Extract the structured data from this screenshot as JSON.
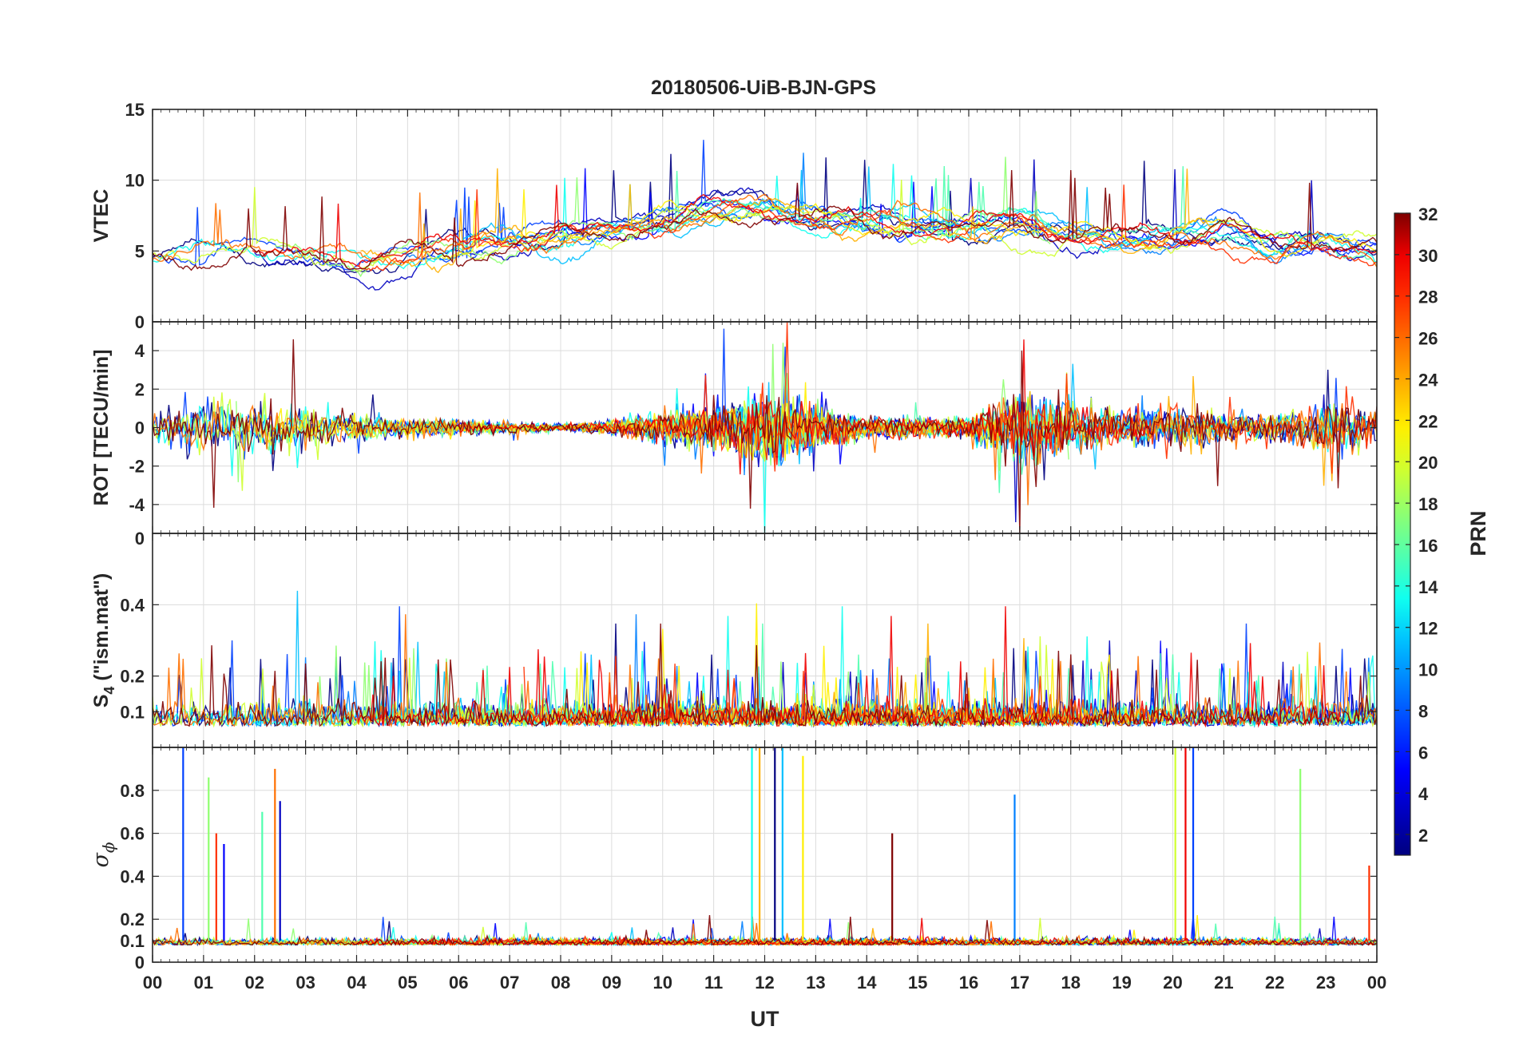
{
  "chart_data": {
    "type": "line",
    "title": "20180506-UiB-BJN-GPS",
    "xlabel": "UT",
    "x_range_hours": [
      0,
      24
    ],
    "x_tick_labels": [
      "00",
      "01",
      "02",
      "03",
      "04",
      "05",
      "06",
      "07",
      "08",
      "09",
      "10",
      "11",
      "12",
      "13",
      "14",
      "15",
      "16",
      "17",
      "18",
      "19",
      "20",
      "21",
      "22",
      "23",
      "00"
    ],
    "series_description": "One time series per GPS satellite PRN 1-32, colored by PRN",
    "panels": [
      {
        "name": "vtec",
        "ylabel": "VTEC",
        "ylim": [
          0,
          15
        ],
        "y_ticks": [
          0,
          5,
          10,
          15
        ],
        "y_tick_labels": [
          "0",
          "5",
          "10",
          "15"
        ],
        "baseline_hourly": [
          4.5,
          5.0,
          5.3,
          4.6,
          4.2,
          4.6,
          5.2,
          5.5,
          6.0,
          6.5,
          7.2,
          7.8,
          8.1,
          7.6,
          7.1,
          6.9,
          6.6,
          6.8,
          6.4,
          5.9,
          6.0,
          6.5,
          5.2,
          5.6,
          5.0
        ]
      },
      {
        "name": "rot",
        "ylabel": "ROT [TECU/min]",
        "ylim": [
          -5.5,
          5.5
        ],
        "y_ticks": [
          -4,
          -2,
          0,
          2,
          4
        ],
        "y_tick_labels": [
          "-4",
          "-2",
          "0",
          "2",
          "4"
        ],
        "activity_hourly": [
          0.7,
          1.6,
          1.4,
          1.2,
          0.8,
          0.5,
          0.5,
          0.3,
          0.2,
          0.4,
          0.9,
          1.2,
          2.0,
          1.3,
          0.6,
          0.6,
          0.6,
          2.2,
          1.4,
          1.0,
          1.1,
          0.9,
          0.7,
          1.4,
          1.5
        ]
      },
      {
        "name": "s4",
        "ylabel_main": "S",
        "ylabel_sub": "4",
        "ylabel_rest": " (\"ism.mat\")",
        "ylim": [
          0,
          0.6
        ],
        "y_ticks": [
          0.1,
          0.2,
          0.4
        ],
        "y_tick_labels": [
          "0.1",
          "0.2",
          "0.4"
        ],
        "top_edge_label": "0",
        "activity_hourly": [
          0.12,
          0.14,
          0.13,
          0.12,
          0.13,
          0.12,
          0.12,
          0.1,
          0.12,
          0.13,
          0.11,
          0.11,
          0.13,
          0.11,
          0.11,
          0.12,
          0.12,
          0.14,
          0.13,
          0.12,
          0.13,
          0.12,
          0.11,
          0.12,
          0.12
        ]
      },
      {
        "name": "sigma_phi",
        "ylabel_symbol": "σ",
        "ylabel_sub": "ϕ",
        "ylim": [
          0,
          1.0
        ],
        "y_ticks": [
          0,
          0.1,
          0.2,
          0.4,
          0.6,
          0.8
        ],
        "y_tick_labels": [
          "0",
          "0.1",
          "0.2",
          "0.4",
          "0.6",
          "0.8"
        ],
        "spikes": [
          {
            "hour": 0.6,
            "value": 1.0
          },
          {
            "hour": 1.1,
            "value": 0.86
          },
          {
            "hour": 1.25,
            "value": 0.6
          },
          {
            "hour": 1.4,
            "value": 0.55
          },
          {
            "hour": 2.15,
            "value": 0.7
          },
          {
            "hour": 2.4,
            "value": 0.9
          },
          {
            "hour": 2.5,
            "value": 0.75
          },
          {
            "hour": 11.75,
            "value": 1.0
          },
          {
            "hour": 11.9,
            "value": 1.0
          },
          {
            "hour": 12.2,
            "value": 1.0
          },
          {
            "hour": 12.35,
            "value": 1.0
          },
          {
            "hour": 12.75,
            "value": 0.96
          },
          {
            "hour": 14.5,
            "value": 0.6
          },
          {
            "hour": 16.9,
            "value": 0.78
          },
          {
            "hour": 20.05,
            "value": 1.0
          },
          {
            "hour": 20.25,
            "value": 1.0
          },
          {
            "hour": 20.4,
            "value": 1.0
          },
          {
            "hour": 22.5,
            "value": 0.9
          },
          {
            "hour": 23.85,
            "value": 0.45
          }
        ]
      }
    ],
    "colorbar": {
      "label": "PRN",
      "range": [
        1,
        32
      ],
      "tick_labels": [
        "2",
        "4",
        "6",
        "8",
        "10",
        "12",
        "14",
        "16",
        "18",
        "20",
        "22",
        "24",
        "26",
        "28",
        "30",
        "32"
      ],
      "colormap": "jet",
      "palette": [
        "#00007f",
        "#0000c0",
        "#0000ff",
        "#0040ff",
        "#0080ff",
        "#00c0ff",
        "#10ffef",
        "#50ffaf",
        "#8fff70",
        "#cfff30",
        "#ffef00",
        "#ffb000",
        "#ff7000",
        "#ff3000",
        "#ef0000",
        "#7f0000"
      ]
    }
  }
}
